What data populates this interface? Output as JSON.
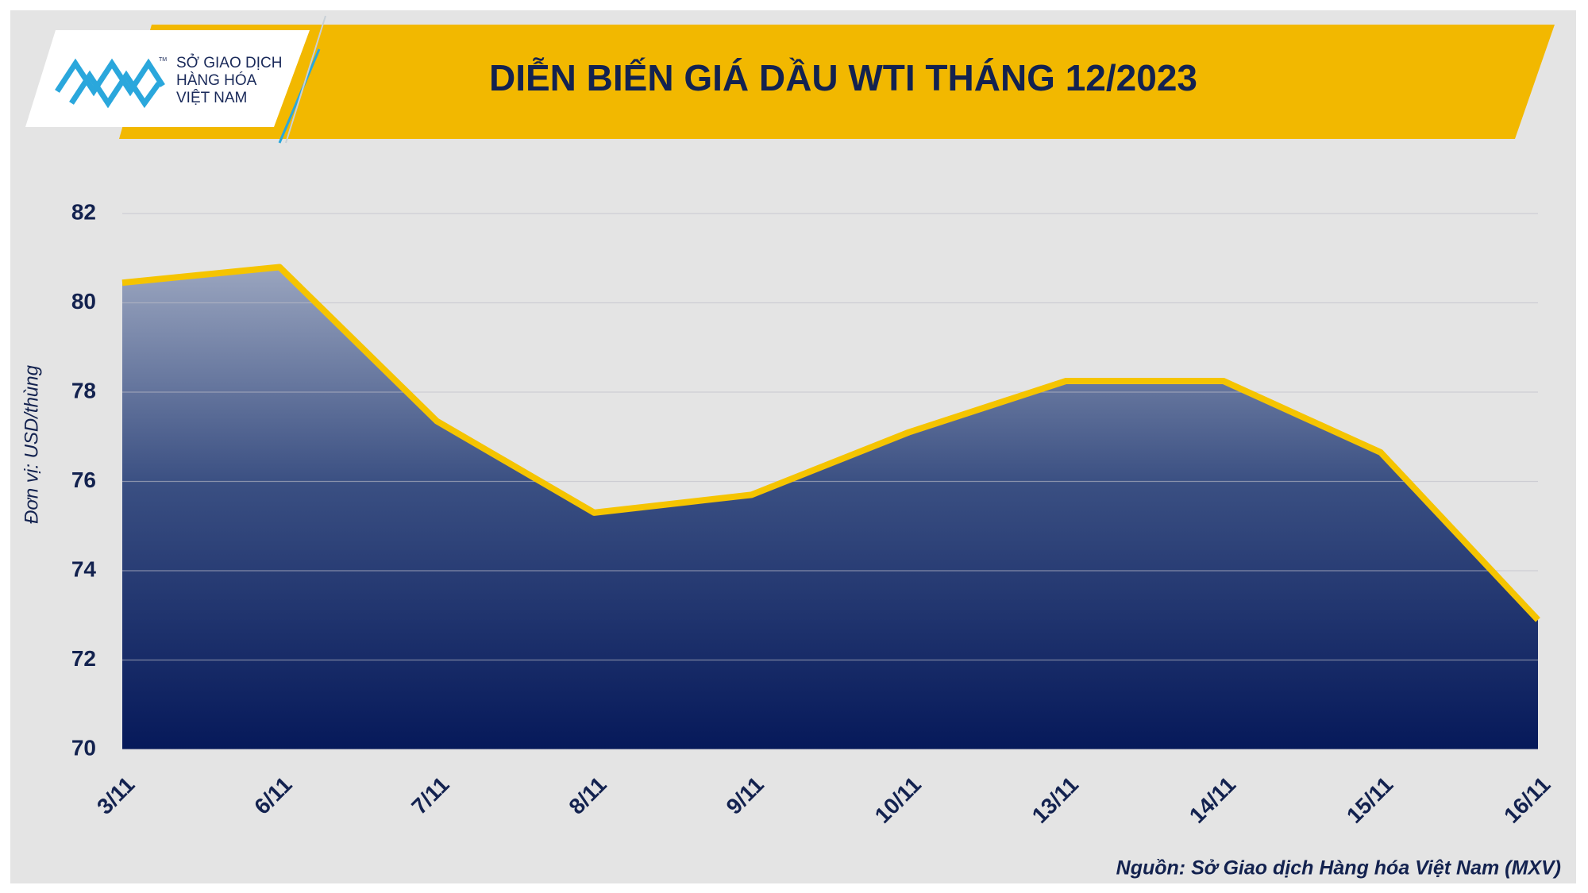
{
  "logo": {
    "lines": [
      "SỞ GIAO DỊCH",
      "HÀNG HÓA",
      "VIỆT NAM"
    ],
    "trademark": "TM"
  },
  "chart_data": {
    "type": "area",
    "title": "DIỄN BIẾN GIÁ DẦU WTI THÁNG 12/2023",
    "y_label": "Đơn vị: USD/thùng",
    "source": "Nguồn: Sở Giao dịch Hàng hóa Việt Nam (MXV)",
    "categories": [
      "3/11",
      "6/11",
      "7/11",
      "8/11",
      "9/11",
      "10/11",
      "13/11",
      "14/11",
      "15/11",
      "16/11"
    ],
    "values": [
      80.45,
      80.8,
      77.35,
      75.3,
      75.7,
      77.1,
      78.25,
      78.25,
      76.65,
      72.9
    ],
    "color": "#f5c400",
    "ylim": [
      70,
      82
    ],
    "yticks": [
      70,
      72,
      74,
      76,
      78,
      80,
      82
    ],
    "grid": true
  }
}
